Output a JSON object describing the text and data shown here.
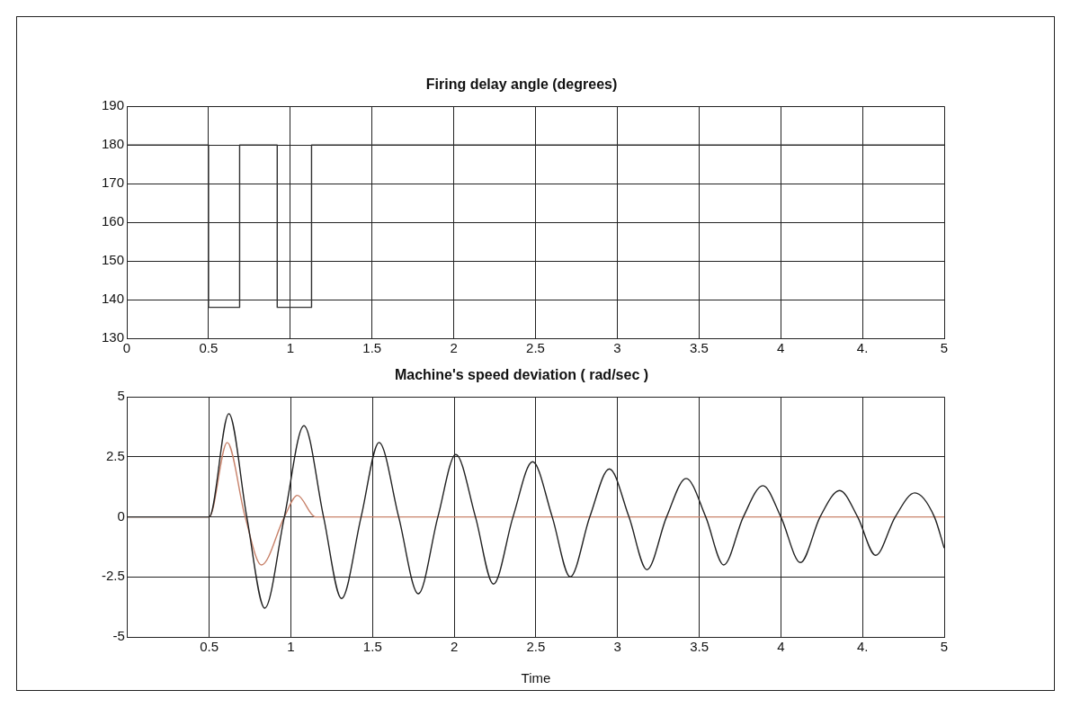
{
  "chart_data": [
    {
      "type": "step",
      "title": "Firing delay angle (degrees)",
      "xlim": [
        0,
        5
      ],
      "xticks": [
        0,
        0.5,
        1,
        1.5,
        2,
        2.5,
        3,
        3.5,
        4,
        {
          "value": 4.5,
          "label": "4."
        },
        5
      ],
      "ylim": [
        130,
        190
      ],
      "yticks": [
        130,
        140,
        150,
        160,
        170,
        180,
        190
      ],
      "grid": true,
      "marker": "none",
      "series": [
        {
          "color": "#333333",
          "x": [
            0,
            0.5,
            0.69,
            0.92,
            1.13,
            5
          ],
          "values": [
            180,
            138,
            180,
            138,
            180,
            180
          ]
        }
      ]
    },
    {
      "type": "line",
      "title": "Machine's speed deviation ( rad/sec )",
      "xlabel": "Time",
      "xlim": [
        0,
        5
      ],
      "xticks": [
        0.5,
        1,
        1.5,
        2,
        2.5,
        3,
        3.5,
        4,
        {
          "value": 4.5,
          "label": "4."
        },
        5
      ],
      "ylim": [
        -5,
        5
      ],
      "yticks": [
        -5,
        -2.5,
        0,
        2.5,
        5
      ],
      "grid": true,
      "marker": "none",
      "series": [
        {
          "color": "#222222",
          "x": [
            0,
            0.5,
            0.62,
            0.73,
            0.84,
            0.96,
            1.08,
            1.2,
            1.31,
            1.43,
            1.54,
            1.66,
            1.78,
            1.9,
            2.01,
            2.13,
            2.24,
            2.36,
            2.48,
            2.6,
            2.71,
            2.83,
            2.95,
            3.07,
            3.18,
            3.3,
            3.42,
            3.54,
            3.65,
            3.77,
            3.89,
            4.0,
            4.12,
            4.24,
            4.36,
            4.47,
            4.58,
            4.7,
            4.82,
            4.94,
            5
          ],
          "values": [
            0,
            0,
            4.3,
            0,
            -3.8,
            0,
            3.8,
            0,
            -3.4,
            0,
            3.1,
            0,
            -3.2,
            0,
            2.6,
            0,
            -2.8,
            0,
            2.3,
            0,
            -2.5,
            0,
            2,
            0,
            -2.2,
            0,
            1.6,
            0,
            -2,
            0,
            1.3,
            0,
            -1.9,
            0,
            1.1,
            0,
            -1.6,
            0,
            1,
            0,
            -1.3
          ]
        },
        {
          "color": "#c8826a",
          "x": [
            0,
            0.5,
            0.61,
            0.72,
            0.82,
            0.96,
            1.04,
            1.15,
            1.2,
            5
          ],
          "values": [
            0,
            0,
            3.1,
            0,
            -2,
            0,
            0.9,
            0,
            0,
            0
          ]
        }
      ]
    }
  ]
}
